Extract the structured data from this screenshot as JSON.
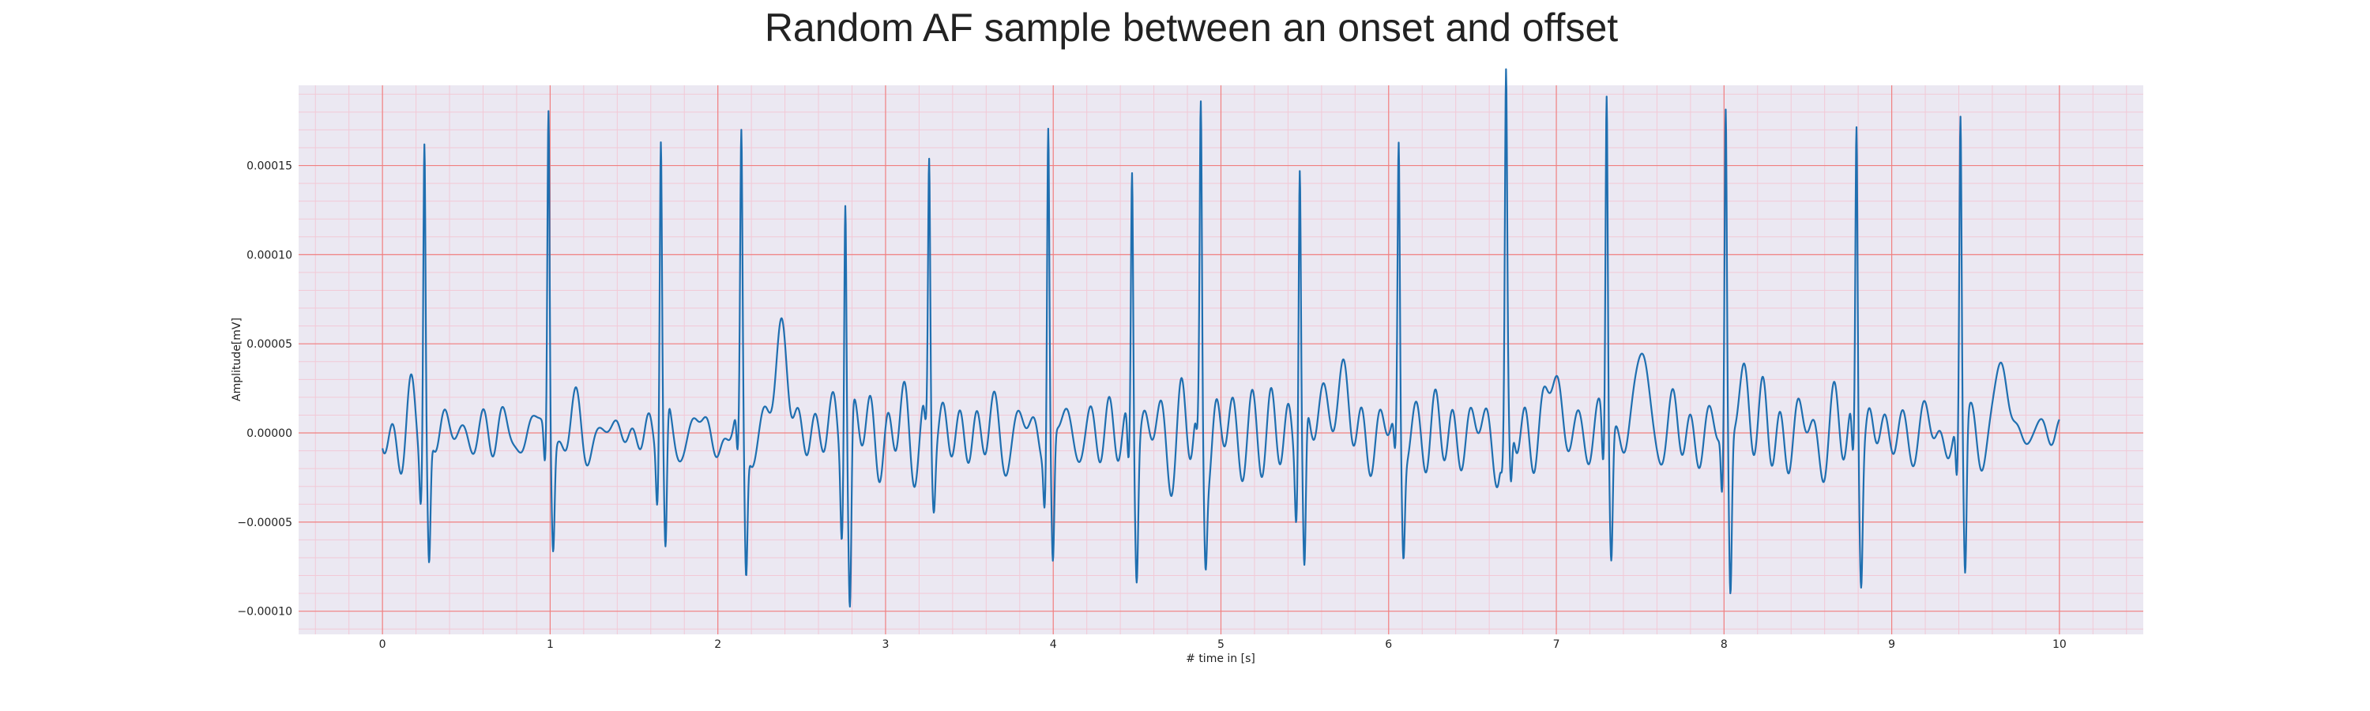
{
  "chart_data": {
    "type": "line",
    "title": "Random AF sample between an onset and offset",
    "xlabel": "# time in [s]",
    "ylabel": "Amplitude[mV]",
    "xlim": [
      -0.5,
      10.5
    ],
    "ylim": [
      -0.000113,
      0.000195
    ],
    "x_ticks": [
      0,
      1,
      2,
      3,
      4,
      5,
      6,
      7,
      8,
      9,
      10
    ],
    "y_ticks": [
      -0.0001,
      -5e-05,
      0.0,
      5e-05,
      0.0001,
      0.00015
    ],
    "x_tick_labels": [
      "0",
      "1",
      "2",
      "3",
      "4",
      "5",
      "6",
      "7",
      "8",
      "9",
      "10"
    ],
    "y_tick_labels": [
      "−0.00010",
      "−0.00005",
      "0.00000",
      "0.00005",
      "0.00010",
      "0.00015"
    ],
    "grid": true,
    "minor_grid": true,
    "colors": {
      "line": "#1f6fb0",
      "major_grid": "#f08080",
      "minor_grid": "#f2c9d6",
      "plot_bg": "#ebe8f2"
    },
    "series": [
      {
        "beats": [
          {
            "t": 0.25,
            "peak": 0.000158,
            "trough": -7.1e-05
          },
          {
            "t": 0.99,
            "peak": 0.000174,
            "trough": -5.7e-05
          },
          {
            "t": 1.66,
            "peak": 0.000152,
            "trough": -8e-05
          },
          {
            "t": 2.14,
            "peak": 0.000136,
            "trough": -7.9e-05
          },
          {
            "t": 2.76,
            "peak": 0.000136,
            "trough": -0.0001
          },
          {
            "t": 3.26,
            "peak": 0.000147,
            "trough": -3e-05
          },
          {
            "t": 3.97,
            "peak": 0.000164,
            "trough": -7.4e-05
          },
          {
            "t": 4.47,
            "peak": 0.000142,
            "trough": -6.8e-05
          },
          {
            "t": 4.88,
            "peak": 0.000164,
            "trough": -5e-05
          },
          {
            "t": 5.47,
            "peak": 0.000145,
            "trough": -8.5e-05
          },
          {
            "t": 6.06,
            "peak": 0.000147,
            "trough": -5.7e-05
          },
          {
            "t": 6.7,
            "peak": 0.000172,
            "trough": -4.5e-05
          },
          {
            "t": 7.3,
            "peak": 0.000182,
            "trough": -6.8e-05
          },
          {
            "t": 8.01,
            "peak": 0.000158,
            "trough": -9.4e-05
          },
          {
            "t": 8.79,
            "peak": 0.000166,
            "trough": -6.6e-05
          },
          {
            "t": 9.41,
            "peak": 0.000157,
            "trough": -8.4e-05
          }
        ],
        "waves": [
          {
            "t": 2.38,
            "amp": 5e-05
          },
          {
            "t": 5.68,
            "amp": 3.3e-05
          },
          {
            "t": 6.98,
            "amp": 2.6e-05
          },
          {
            "t": 7.51,
            "amp": 3.4e-05
          },
          {
            "t": 8.12,
            "amp": 2.6e-05
          },
          {
            "t": 9.66,
            "amp": 2.9e-05
          }
        ]
      }
    ]
  }
}
